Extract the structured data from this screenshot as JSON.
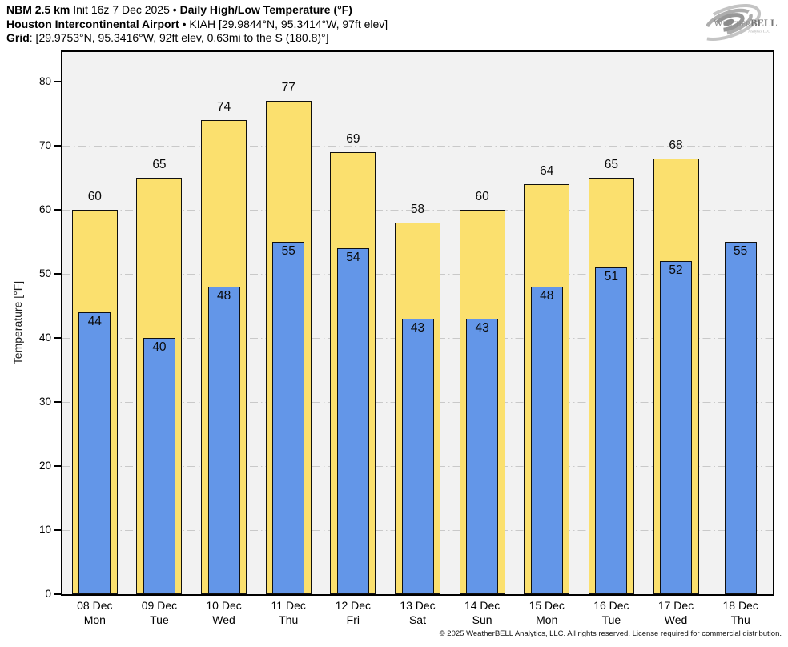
{
  "header": {
    "line1": [
      {
        "text": "NBM 2.5 km",
        "bold": true
      },
      {
        "text": " Init 16z 7 Dec 2025 • ",
        "bold": false
      },
      {
        "text": "Daily High/Low Temperature (°F)",
        "bold": true
      }
    ],
    "line2": [
      {
        "text": "Houston Intercontinental Airport",
        "bold": true
      },
      {
        "text": " • KIAH [29.9844°N, 95.3414°W, 97ft elev]",
        "bold": false
      }
    ],
    "line3": [
      {
        "text": "Grid",
        "bold": true
      },
      {
        "text": ": [29.9753°N, 95.3416°W, 92ft elev, 0.63mi to the S (180.8)°]",
        "bold": false
      }
    ]
  },
  "logo": {
    "brand_prefix": "Weather",
    "brand_suffix": "BELL",
    "brand_sub": "Analytics LLC"
  },
  "chart_data": {
    "type": "bar",
    "title": "Daily High/Low Temperature (°F)",
    "ylabel": "Temperature [°F]",
    "ylim": [
      0,
      85
    ],
    "yticks": [
      0,
      10,
      20,
      30,
      40,
      50,
      60,
      70,
      80
    ],
    "grid": true,
    "legend_position": "none",
    "series": [
      {
        "name": "High",
        "color": "#FBE06E"
      },
      {
        "name": "Low",
        "color": "#6396E8"
      }
    ],
    "colors": {
      "plot_bg": "#F2F2F2",
      "gridline": "#C9C9C9",
      "bar_border": "#101010"
    },
    "days": [
      {
        "date": "08 Dec",
        "dow": "Mon",
        "high": 60,
        "low": 44
      },
      {
        "date": "09 Dec",
        "dow": "Tue",
        "high": 65,
        "low": 40
      },
      {
        "date": "10 Dec",
        "dow": "Wed",
        "high": 74,
        "low": 48
      },
      {
        "date": "11 Dec",
        "dow": "Thu",
        "high": 77,
        "low": 55
      },
      {
        "date": "12 Dec",
        "dow": "Fri",
        "high": 69,
        "low": 54
      },
      {
        "date": "13 Dec",
        "dow": "Sat",
        "high": 58,
        "low": 43
      },
      {
        "date": "14 Dec",
        "dow": "Sun",
        "high": 60,
        "low": 43
      },
      {
        "date": "15 Dec",
        "dow": "Mon",
        "high": 64,
        "low": 48
      },
      {
        "date": "16 Dec",
        "dow": "Tue",
        "high": 65,
        "low": 51
      },
      {
        "date": "17 Dec",
        "dow": "Wed",
        "high": 68,
        "low": 52
      },
      {
        "date": "18 Dec",
        "dow": "Thu",
        "high": null,
        "low": 55
      }
    ]
  },
  "footer": "© 2025 WeatherBELL Analytics, LLC. All rights reserved. License required for commercial distribution."
}
